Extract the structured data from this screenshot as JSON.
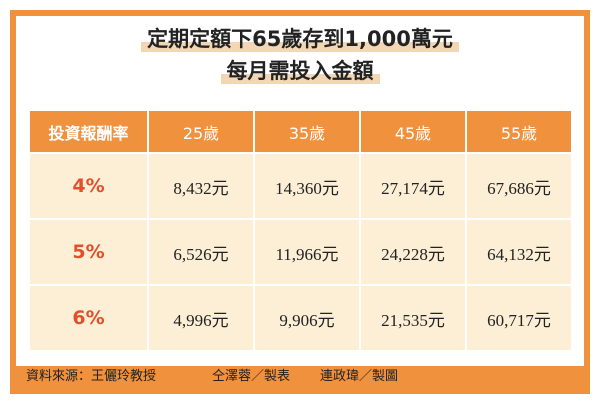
{
  "title": {
    "line1": "定期定額下65歲存到1,000萬元",
    "line2": "每月需投入金額"
  },
  "table": {
    "headers": [
      "投資報酬率",
      "25歲",
      "35歲",
      "45歲",
      "55歲"
    ],
    "rows": [
      {
        "rate": "4%",
        "values": [
          "8,432元",
          "14,360元",
          "27,174元",
          "67,686元"
        ]
      },
      {
        "rate": "5%",
        "values": [
          "6,526元",
          "11,966元",
          "24,228元",
          "64,132元"
        ]
      },
      {
        "rate": "6%",
        "values": [
          "4,996元",
          "9,906元",
          "21,535元",
          "60,717元"
        ]
      }
    ]
  },
  "footer": {
    "source": "資料來源：王儷玲教授",
    "table_maker": "仝澤蓉／製表",
    "illustrator": "連政瑋／製圖"
  },
  "colors": {
    "accent_orange": "#f0913e",
    "cell_bg": "#fdefd6",
    "rate_red": "#e0502a",
    "title_highlight": "#f3d7b4"
  }
}
